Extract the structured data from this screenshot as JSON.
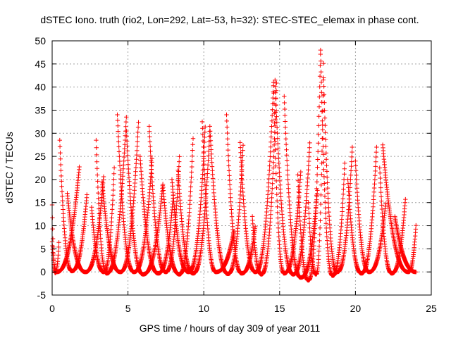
{
  "chart_data": {
    "type": "scatter",
    "title": "dSTEC Iono. truth (rio2, Lon=292, Lat=-53, h=32): STEC-STEC_elemax in phase cont.",
    "xlabel": "GPS time / hours of day 309 of year 2011",
    "ylabel": "dSTEC  / TECUs",
    "xlim": [
      0,
      25
    ],
    "ylim": [
      -5,
      50
    ],
    "x_ticks": [
      "0",
      "5",
      "10",
      "15",
      "20",
      "25"
    ],
    "y_ticks": [
      "-5",
      "0",
      "5",
      "10",
      "15",
      "20",
      "25",
      "30",
      "35",
      "40",
      "45",
      "50"
    ],
    "grid": true,
    "marker": "+",
    "marker_color": "#ff0000",
    "arcs": [
      {
        "start": 0.0,
        "end": 0.45,
        "min_x": 0.2,
        "min_y": -0.2,
        "left_y": 14.5,
        "right_y": 6.5
      },
      {
        "start": 0.0,
        "end": 1.8,
        "min_x": 0.3,
        "min_y": 0.0,
        "left_y": 6.5,
        "right_y": 23.0
      },
      {
        "start": 0.5,
        "end": 2.3,
        "min_x": 1.3,
        "min_y": 0.2,
        "left_y": 28.5,
        "right_y": 17.0
      },
      {
        "start": 1.0,
        "end": 3.4,
        "min_x": 2.2,
        "min_y": 0.0,
        "left_y": 17.0,
        "right_y": 21.0
      },
      {
        "start": 2.6,
        "end": 4.1,
        "min_x": 3.4,
        "min_y": 0.0,
        "left_y": 14.0,
        "right_y": 23.0
      },
      {
        "start": 2.9,
        "end": 4.9,
        "min_x": 3.6,
        "min_y": -0.3,
        "left_y": 28.5,
        "right_y": 34.0
      },
      {
        "start": 3.3,
        "end": 5.7,
        "min_x": 4.5,
        "min_y": 0.0,
        "left_y": 19.5,
        "right_y": 33.0
      },
      {
        "start": 4.3,
        "end": 6.6,
        "min_x": 5.4,
        "min_y": 0.0,
        "left_y": 34.0,
        "right_y": 25.0
      },
      {
        "start": 4.9,
        "end": 7.3,
        "min_x": 6.0,
        "min_y": -0.5,
        "left_y": 30.5,
        "right_y": 19.0
      },
      {
        "start": 5.8,
        "end": 8.0,
        "min_x": 7.0,
        "min_y": -0.3,
        "left_y": 25.0,
        "right_y": 17.0
      },
      {
        "start": 6.4,
        "end": 8.4,
        "min_x": 7.5,
        "min_y": 0.0,
        "left_y": 31.5,
        "right_y": 25.5
      },
      {
        "start": 7.3,
        "end": 9.3,
        "min_x": 8.4,
        "min_y": -0.5,
        "left_y": 19.0,
        "right_y": 29.5
      },
      {
        "start": 7.9,
        "end": 10.1,
        "min_x": 9.0,
        "min_y": 0.0,
        "left_y": 20.0,
        "right_y": 32.0
      },
      {
        "start": 8.3,
        "end": 10.4,
        "min_x": 9.3,
        "min_y": -0.3,
        "left_y": 22.0,
        "right_y": 31.0
      },
      {
        "start": 9.9,
        "end": 12.0,
        "min_x": 10.8,
        "min_y": 0.0,
        "left_y": 32.5,
        "right_y": 9.0
      },
      {
        "start": 10.4,
        "end": 12.6,
        "min_x": 11.6,
        "min_y": -0.4,
        "left_y": 31.5,
        "right_y": 28.0
      },
      {
        "start": 11.5,
        "end": 13.4,
        "min_x": 12.5,
        "min_y": -0.3,
        "left_y": 34.0,
        "right_y": 10.0
      },
      {
        "start": 12.4,
        "end": 14.6,
        "min_x": 13.4,
        "min_y": 0.0,
        "left_y": 28.0,
        "right_y": 41.0
      },
      {
        "start": 13.2,
        "end": 14.8,
        "min_x": 13.8,
        "min_y": -0.5,
        "left_y": 12.0,
        "right_y": 41.5
      },
      {
        "start": 14.6,
        "end": 16.4,
        "min_x": 15.3,
        "min_y": -0.3,
        "left_y": 41.0,
        "right_y": 22.0
      },
      {
        "start": 14.7,
        "end": 17.0,
        "min_x": 15.9,
        "min_y": -0.5,
        "left_y": 41.5,
        "right_y": 28.5
      },
      {
        "start": 15.3,
        "end": 17.5,
        "min_x": 16.4,
        "min_y": -1.2,
        "left_y": 38.0,
        "right_y": 18.0
      },
      {
        "start": 16.2,
        "end": 17.7,
        "min_x": 16.9,
        "min_y": -1.8,
        "left_y": 21.0,
        "right_y": 48.0
      },
      {
        "start": 16.9,
        "end": 17.9,
        "min_x": 17.4,
        "min_y": -0.5,
        "left_y": 15.0,
        "right_y": 46.0
      },
      {
        "start": 17.7,
        "end": 19.3,
        "min_x": 18.5,
        "min_y": -0.8,
        "left_y": 48.0,
        "right_y": 24.0
      },
      {
        "start": 17.9,
        "end": 19.8,
        "min_x": 18.8,
        "min_y": 0.0,
        "left_y": 42.0,
        "right_y": 27.5
      },
      {
        "start": 19.5,
        "end": 21.4,
        "min_x": 20.4,
        "min_y": -0.3,
        "left_y": 20.0,
        "right_y": 27.5
      },
      {
        "start": 20.0,
        "end": 22.0,
        "min_x": 20.9,
        "min_y": 0.0,
        "left_y": 24.0,
        "right_y": 15.0
      },
      {
        "start": 21.6,
        "end": 23.3,
        "min_x": 22.4,
        "min_y": -0.3,
        "left_y": 22.5,
        "right_y": 16.0
      },
      {
        "start": 21.8,
        "end": 24.0,
        "min_x": 23.5,
        "min_y": 0.0,
        "left_y": 27.5,
        "right_y": 10.5
      },
      {
        "start": 22.6,
        "end": 24.0,
        "min_x": 24.0,
        "min_y": 0.0,
        "left_y": 12.0,
        "right_y": 0.0
      }
    ]
  }
}
